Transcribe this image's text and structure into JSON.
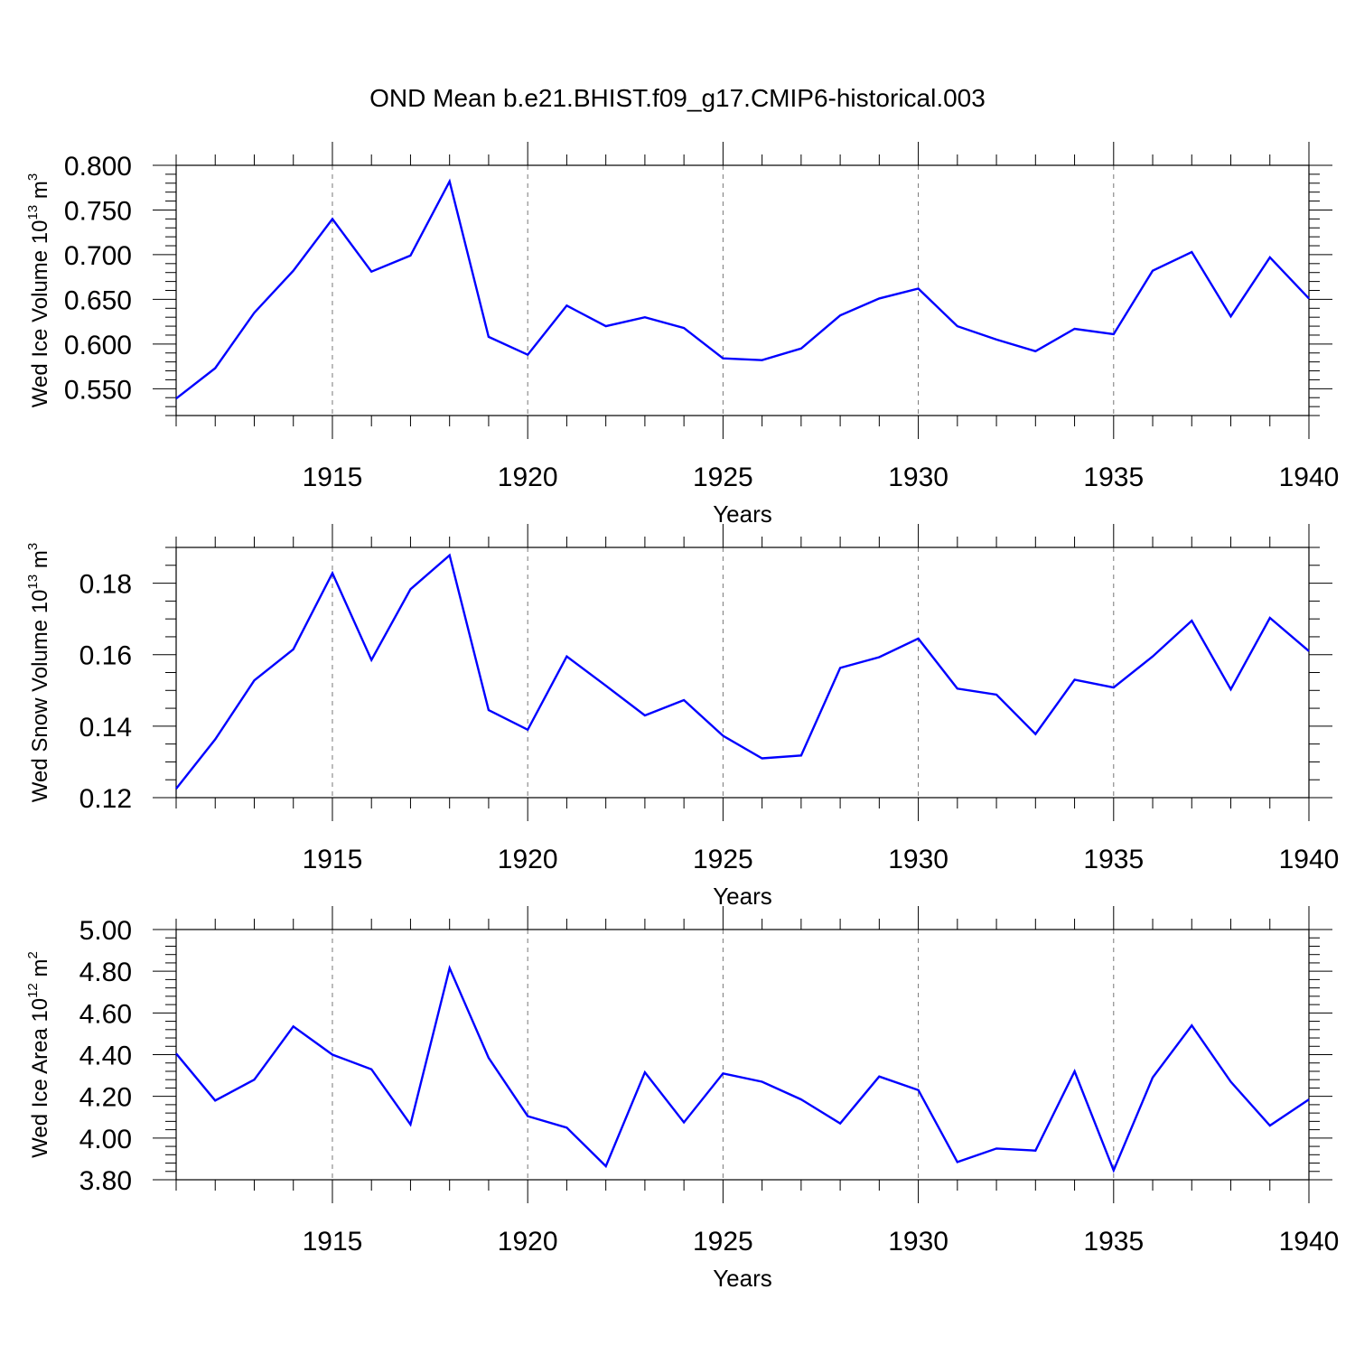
{
  "title": "OND Mean b.e21.BHIST.f09_g17.CMIP6-historical.003",
  "chart_data": [
    {
      "type": "line",
      "ylabel": {
        "text": "Wed Ice Volume 10",
        "exp": "13",
        "unit": " m",
        "unit_exp": "3"
      },
      "xlabel": "Years",
      "xlim": [
        1911,
        1940
      ],
      "ylim": [
        0.52,
        0.8
      ],
      "yticks": [
        0.55,
        0.6,
        0.65,
        0.7,
        0.75,
        0.8
      ],
      "ytick_labels": [
        "0.550",
        "0.600",
        "0.650",
        "0.700",
        "0.750",
        "0.800"
      ],
      "yminor_step": 0.01,
      "xticks": [
        1915,
        1920,
        1925,
        1930,
        1935,
        1940
      ],
      "xtick_labels": [
        "1915",
        "1920",
        "1925",
        "1930",
        "1935",
        "1940"
      ],
      "grid": "dashed vertical at major x ticks",
      "line_color": "#0000ff",
      "x": [
        1911,
        1912,
        1913,
        1914,
        1915,
        1916,
        1917,
        1918,
        1919,
        1920,
        1921,
        1922,
        1923,
        1924,
        1925,
        1926,
        1927,
        1928,
        1929,
        1930,
        1931,
        1932,
        1933,
        1934,
        1935,
        1936,
        1937,
        1938,
        1939,
        1940
      ],
      "values": [
        0.539,
        0.573,
        0.635,
        0.682,
        0.74,
        0.681,
        0.699,
        0.782,
        0.608,
        0.588,
        0.643,
        0.62,
        0.63,
        0.618,
        0.584,
        0.582,
        0.595,
        0.632,
        0.651,
        0.662,
        0.62,
        0.605,
        0.592,
        0.617,
        0.611,
        0.682,
        0.703,
        0.631,
        0.697,
        0.651
      ]
    },
    {
      "type": "line",
      "ylabel": {
        "text": "Wed Snow Volume 10",
        "exp": "13",
        "unit": " m",
        "unit_exp": "3"
      },
      "xlabel": "Years",
      "xlim": [
        1911,
        1940
      ],
      "ylim": [
        0.12,
        0.19
      ],
      "yticks": [
        0.12,
        0.14,
        0.16,
        0.18
      ],
      "ytick_labels": [
        "0.12",
        "0.14",
        "0.16",
        "0.18"
      ],
      "yminor_step": 0.005,
      "xticks": [
        1915,
        1920,
        1925,
        1930,
        1935,
        1940
      ],
      "xtick_labels": [
        "1915",
        "1920",
        "1925",
        "1930",
        "1935",
        "1940"
      ],
      "grid": "dashed vertical at major x ticks",
      "line_color": "#0000ff",
      "x": [
        1911,
        1912,
        1913,
        1914,
        1915,
        1916,
        1917,
        1918,
        1919,
        1920,
        1921,
        1922,
        1923,
        1924,
        1925,
        1926,
        1927,
        1928,
        1929,
        1930,
        1931,
        1932,
        1933,
        1934,
        1935,
        1936,
        1937,
        1938,
        1939,
        1940
      ],
      "values": [
        0.1225,
        0.1363,
        0.1528,
        0.1615,
        0.1828,
        0.1585,
        0.1783,
        0.1878,
        0.1445,
        0.139,
        0.1595,
        0.1513,
        0.143,
        0.1473,
        0.1373,
        0.131,
        0.1318,
        0.1563,
        0.1593,
        0.1645,
        0.1505,
        0.1488,
        0.1378,
        0.153,
        0.1508,
        0.1595,
        0.1695,
        0.1503,
        0.1703,
        0.161
      ]
    },
    {
      "type": "line",
      "ylabel": {
        "text": "Wed Ice Area 10",
        "exp": "12",
        "unit": " m",
        "unit_exp": "2"
      },
      "xlabel": "Years",
      "xlim": [
        1911,
        1940
      ],
      "ylim": [
        3.8,
        5.0
      ],
      "yticks": [
        3.8,
        4.0,
        4.2,
        4.4,
        4.6,
        4.8,
        5.0
      ],
      "ytick_labels": [
        "3.80",
        "4.00",
        "4.20",
        "4.40",
        "4.60",
        "4.80",
        "5.00"
      ],
      "yminor_step": 0.04,
      "xticks": [
        1915,
        1920,
        1925,
        1930,
        1935,
        1940
      ],
      "xtick_labels": [
        "1915",
        "1920",
        "1925",
        "1930",
        "1935",
        "1940"
      ],
      "grid": "dashed vertical at major x ticks",
      "line_color": "#0000ff",
      "x": [
        1911,
        1912,
        1913,
        1914,
        1915,
        1916,
        1917,
        1918,
        1919,
        1920,
        1921,
        1922,
        1923,
        1924,
        1925,
        1926,
        1927,
        1928,
        1929,
        1930,
        1931,
        1932,
        1933,
        1934,
        1935,
        1936,
        1937,
        1938,
        1939,
        1940
      ],
      "values": [
        4.405,
        4.18,
        4.28,
        4.535,
        4.4,
        4.33,
        4.065,
        4.815,
        4.385,
        4.105,
        4.05,
        3.865,
        4.315,
        4.075,
        4.31,
        4.27,
        4.185,
        4.07,
        4.295,
        4.23,
        3.885,
        3.95,
        3.94,
        4.32,
        3.845,
        4.29,
        4.54,
        4.27,
        4.06,
        4.185
      ]
    }
  ]
}
